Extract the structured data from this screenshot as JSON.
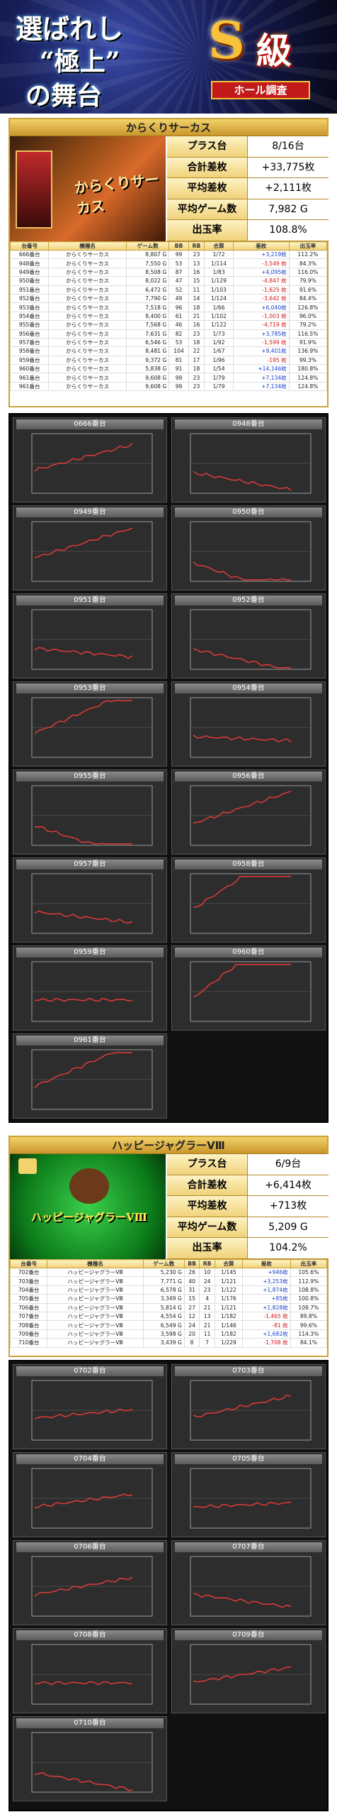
{
  "banner": {
    "line1": "選ばれし",
    "line2": "“極上”",
    "line3": "の舞台",
    "badge_letter": "S",
    "badge_rank": "級",
    "badge_sub": "ホール調査"
  },
  "sections": [
    {
      "title": "からくりサーカス",
      "logo": "からくりサーカス",
      "stats": [
        [
          "プラス台",
          "8/16台"
        ],
        [
          "合計差枚",
          "+33,775枚"
        ],
        [
          "平均差枚",
          "+2,111枚"
        ],
        [
          "平均ゲーム数",
          "7,982 G"
        ],
        [
          "出玉率",
          "108.8%"
        ]
      ],
      "headers": [
        "台番号",
        "機種名",
        "ゲーム数",
        "BB",
        "RB",
        "合算",
        "差枚",
        "出玉率"
      ],
      "rows": [
        [
          "666番台",
          "からくりサーカス",
          "8,807 G",
          "99",
          "23",
          "1/72",
          "+3,219枚",
          "112.2%"
        ],
        [
          "948番台",
          "からくりサーカス",
          "7,550 G",
          "53",
          "13",
          "1/114",
          "-3,549 枚",
          "84.3%"
        ],
        [
          "949番台",
          "からくりサーカス",
          "8,508 G",
          "87",
          "16",
          "1/83",
          "+4,095枚",
          "116.0%"
        ],
        [
          "950番台",
          "からくりサーカス",
          "8,022 G",
          "47",
          "15",
          "1/129",
          "-4,847 枚",
          "79.9%"
        ],
        [
          "951番台",
          "からくりサーカス",
          "6,472 G",
          "52",
          "11",
          "1/103",
          "-1,625 枚",
          "91.6%"
        ],
        [
          "952番台",
          "からくりサーカス",
          "7,790 G",
          "49",
          "14",
          "1/124",
          "-3,642 枚",
          "84.4%"
        ],
        [
          "953番台",
          "からくりサーカス",
          "7,518 G",
          "96",
          "18",
          "1/66",
          "+6,040枚",
          "126.8%"
        ],
        [
          "954番台",
          "からくりサーカス",
          "8,400 G",
          "61",
          "21",
          "1/102",
          "-1,003 枚",
          "96.0%"
        ],
        [
          "955番台",
          "からくりサーカス",
          "7,568 G",
          "46",
          "16",
          "1/122",
          "-4,719 枚",
          "79.2%"
        ],
        [
          "956番台",
          "からくりサーカス",
          "7,631 G",
          "82",
          "23",
          "1/73",
          "+3,785枚",
          "116.5%"
        ],
        [
          "957番台",
          "からくりサーカス",
          "6,546 G",
          "53",
          "18",
          "1/92",
          "-1,599 枚",
          "91.9%"
        ],
        [
          "958番台",
          "からくりサーカス",
          "8,481 G",
          "104",
          "22",
          "1/67",
          "+9,401枚",
          "136.9%"
        ],
        [
          "959番台",
          "からくりサーカス",
          "9,372 G",
          "81",
          "17",
          "1/96",
          "-195 枚",
          "99.3%"
        ],
        [
          "960番台",
          "からくりサーカス",
          "5,838 G",
          "91",
          "18",
          "1/54",
          "+14,146枚",
          "180.8%"
        ],
        [
          "961番台",
          "からくりサーカス",
          "9,608 G",
          "99",
          "23",
          "1/79",
          "+7,134枚",
          "124.8%"
        ],
        [
          "961番台",
          "からくりサーカス",
          "9,608 G",
          "99",
          "23",
          "1/79",
          "+7,134枚",
          "124.8%"
        ]
      ]
    },
    {
      "title": "ハッピージャグラーVⅢ",
      "logo": "ハッピージャグラーVⅢ",
      "stats": [
        [
          "プラス台",
          "6/9台"
        ],
        [
          "合計差枚",
          "+6,414枚"
        ],
        [
          "平均差枚",
          "+713枚"
        ],
        [
          "平均ゲーム数",
          "5,209 G"
        ],
        [
          "出玉率",
          "104.2%"
        ]
      ],
      "headers": [
        "台番号",
        "機種名",
        "ゲーム数",
        "BB",
        "RB",
        "合算",
        "差枚",
        "出玉率"
      ],
      "rows": [
        [
          "702番台",
          "ハッピージャグラーVⅢ",
          "5,230 G",
          "26",
          "10",
          "1/145",
          "+946枚",
          "105.6%"
        ],
        [
          "703番台",
          "ハッピージャグラーVⅢ",
          "7,771 G",
          "40",
          "24",
          "1/121",
          "+3,253枚",
          "112.9%"
        ],
        [
          "704番台",
          "ハッピージャグラーVⅢ",
          "6,578 G",
          "31",
          "23",
          "1/122",
          "+1,874枚",
          "108.8%"
        ],
        [
          "705番台",
          "ハッピージャグラーVⅢ",
          "3,349 G",
          "15",
          "4",
          "1/176",
          "+85枚",
          "100.8%"
        ],
        [
          "706番台",
          "ハッピージャグラーVⅢ",
          "5,814 G",
          "27",
          "21",
          "1/121",
          "+1,828枚",
          "109.7%"
        ],
        [
          "707番台",
          "ハッピージャグラーVⅢ",
          "4,554 G",
          "12",
          "13",
          "1/182",
          "-1,465 枚",
          "89.8%"
        ],
        [
          "708番台",
          "ハッピージャグラーVⅢ",
          "6,549 G",
          "24",
          "21",
          "1/146",
          "-81 枚",
          "99.6%"
        ],
        [
          "709番台",
          "ハッピージャグラーVⅢ",
          "3,598 G",
          "20",
          "11",
          "1/182",
          "+1,682枚",
          "114.3%"
        ],
        [
          "710番台",
          "ハッピージャグラーVⅢ",
          "3,439 G",
          "8",
          "7",
          "1/229",
          "-1,708 枚",
          "84.1%"
        ]
      ]
    }
  ],
  "graphs1": [
    "0666番台",
    "0948番台",
    "0949番台",
    "0950番台",
    "0951番台",
    "0952番台",
    "0953番台",
    "0954番台",
    "0955番台",
    "0956番台",
    "0957番台",
    "0958番台",
    "0959番台",
    "0960番台",
    "0961番台"
  ],
  "graphs2": [
    "0702番台",
    "0703番台",
    "0704番台",
    "0705番台",
    "0706番台",
    "0707番台",
    "0708番台",
    "0709番台",
    "0710番台"
  ],
  "colors": {
    "line": "#e03a3a",
    "axis": "#9a9a9a"
  }
}
